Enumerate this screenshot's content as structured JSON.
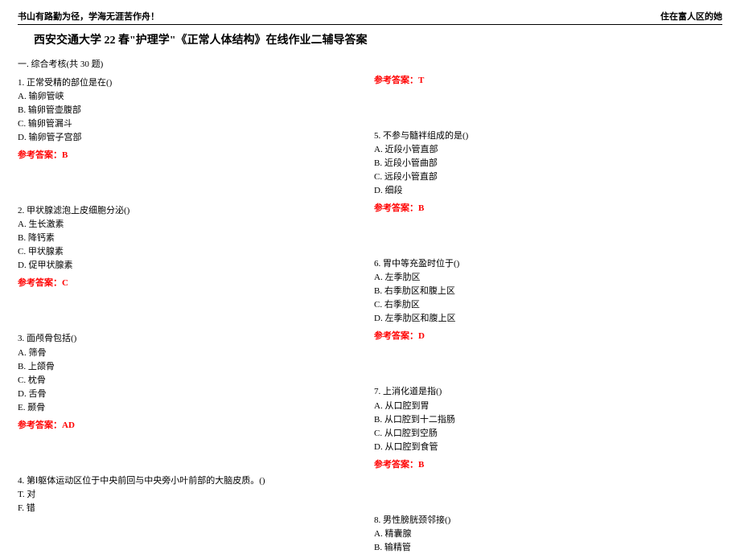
{
  "header": {
    "left": "书山有路勤为径，学海无涯苦作舟！",
    "right": "住在富人区的她"
  },
  "title": "西安交通大学 22 春\"护理学\"《正常人体结构》在线作业二辅导答案",
  "section": "一. 综合考核(共 30 题)",
  "answer_prefix": "参考答案：",
  "questions": [
    {
      "num": "1.",
      "stem": "正常受精的部位是在()",
      "options": [
        "A. 输卵管峡",
        "B. 输卵管壶腹部",
        "C. 输卵管漏斗",
        "D. 输卵管子宫部"
      ],
      "answer": "B"
    },
    {
      "num": "2.",
      "stem": "甲状腺滤泡上皮细胞分泌()",
      "options": [
        "A. 生长激素",
        "B. 降钙素",
        "C. 甲状腺素",
        "D. 促甲状腺素"
      ],
      "answer": "C"
    },
    {
      "num": "3.",
      "stem": "面颅骨包括()",
      "options": [
        "A. 筛骨",
        "B. 上颌骨",
        "C. 枕骨",
        "D. 舌骨",
        "E. 颞骨"
      ],
      "answer": "AD"
    },
    {
      "num": "4.",
      "stem": "第Ⅰ躯体运动区位于中央前回与中央旁小叶前部的大脑皮质。()",
      "options": [
        "T. 对",
        "F. 错"
      ],
      "answer": "T"
    },
    {
      "num": "5.",
      "stem": "不参与髓袢组成的是()",
      "options": [
        "A. 近段小管直部",
        "B. 近段小管曲部",
        "C. 远段小管直部",
        "D. 细段"
      ],
      "answer": "B"
    },
    {
      "num": "6.",
      "stem": "胃中等充盈时位于()",
      "options": [
        "A. 左季肋区",
        "B. 右季肋区和腹上区",
        "C. 右季肋区",
        "D. 左季肋区和腹上区"
      ],
      "answer": "D"
    },
    {
      "num": "7.",
      "stem": "上消化道是指()",
      "options": [
        "A. 从口腔到胃",
        "B. 从口腔到十二指肠",
        "C. 从口腔到空肠",
        "D. 从口腔到食管"
      ],
      "answer": "B"
    },
    {
      "num": "8.",
      "stem": "男性膀胱颈邻接()",
      "options": [
        "A. 精囊腺",
        "B. 输精管"
      ],
      "answer": ""
    }
  ]
}
